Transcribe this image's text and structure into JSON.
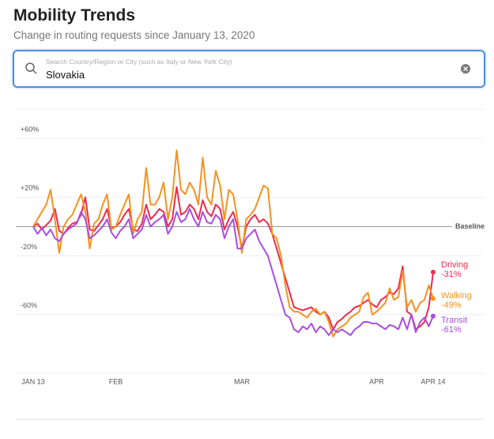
{
  "header": {
    "title": "Mobility Trends",
    "subtitle": "Change in routing requests since January 13, 2020"
  },
  "search": {
    "placeholder": "Search Country/Region or City (such as Italy or New York City)",
    "value": "Slovakia"
  },
  "chart_data": {
    "type": "line",
    "x": [
      0,
      1,
      2,
      3,
      4,
      5,
      6,
      7,
      8,
      9,
      10,
      11,
      12,
      13,
      14,
      15,
      16,
      17,
      18,
      19,
      20,
      21,
      22,
      23,
      24,
      25,
      26,
      27,
      28,
      29,
      30,
      31,
      32,
      33,
      34,
      35,
      36,
      37,
      38,
      39,
      40,
      41,
      42,
      43,
      44,
      45,
      46,
      47,
      48,
      49,
      50,
      51,
      52,
      53,
      54,
      55,
      56,
      57,
      58,
      59,
      60,
      61,
      62,
      63,
      64,
      65,
      66,
      67,
      68,
      69,
      70,
      71,
      72,
      73,
      74,
      75,
      76,
      77,
      78,
      79,
      80,
      81,
      82,
      83,
      84,
      85,
      86,
      87,
      88,
      89,
      90,
      91,
      92
    ],
    "xlim": [
      0,
      92
    ],
    "xticks": [
      {
        "value": 0,
        "label": "JAN 13"
      },
      {
        "value": 19,
        "label": "FEB"
      },
      {
        "value": 48,
        "label": "MAR"
      },
      {
        "value": 79,
        "label": "APR"
      },
      {
        "value": 92,
        "label": "APR 14"
      }
    ],
    "ylim": [
      -100,
      80
    ],
    "yticks": [
      {
        "value": 60,
        "label": "+60%"
      },
      {
        "value": 20,
        "label": "+20%"
      },
      {
        "value": -20,
        "label": "-20%"
      },
      {
        "value": -60,
        "label": "-60%"
      }
    ],
    "baseline": {
      "value": 0,
      "label": "Baseline"
    },
    "series": [
      {
        "name": "Driving",
        "color": "#ee2a50",
        "end_label": "-31%",
        "values": [
          0,
          2,
          -2,
          1,
          4,
          12,
          -3,
          -5,
          -1,
          2,
          3,
          8,
          20,
          -2,
          -3,
          1,
          5,
          12,
          -1,
          0,
          3,
          8,
          12,
          -2,
          -3,
          2,
          15,
          5,
          8,
          12,
          10,
          0,
          5,
          27,
          8,
          10,
          15,
          12,
          5,
          18,
          10,
          7,
          15,
          12,
          -2,
          5,
          10,
          0,
          -15,
          0,
          5,
          8,
          3,
          5,
          2,
          -5,
          -15,
          -25,
          -35,
          -45,
          -55,
          -56,
          -57,
          -56,
          -55,
          -58,
          -60,
          -58,
          -62,
          -70,
          -65,
          -63,
          -60,
          -58,
          -55,
          -54,
          -52,
          -50,
          -53,
          -55,
          -50,
          -48,
          -45,
          -46,
          -42,
          -27,
          -58,
          -60,
          -70,
          -68,
          -65,
          -55,
          -31
        ]
      },
      {
        "name": "Walking",
        "color": "#f5921e",
        "end_label": "-49%",
        "values": [
          0,
          5,
          10,
          15,
          25,
          5,
          -18,
          0,
          5,
          8,
          15,
          22,
          10,
          -15,
          2,
          5,
          15,
          22,
          -2,
          0,
          8,
          15,
          22,
          -5,
          5,
          10,
          40,
          15,
          15,
          20,
          30,
          5,
          20,
          52,
          25,
          22,
          30,
          25,
          15,
          47,
          20,
          15,
          38,
          28,
          5,
          25,
          22,
          5,
          -18,
          5,
          8,
          12,
          20,
          28,
          26,
          -5,
          -8,
          -20,
          -40,
          -55,
          -58,
          -58,
          -60,
          -62,
          -58,
          -56,
          -60,
          -58,
          -65,
          -75,
          -70,
          -68,
          -66,
          -62,
          -60,
          -58,
          -48,
          -45,
          -60,
          -58,
          -55,
          -52,
          -42,
          -50,
          -48,
          -30,
          -55,
          -50,
          -58,
          -52,
          -50,
          -40,
          -49
        ]
      },
      {
        "name": "Transit",
        "color": "#a94ee0",
        "end_label": "-61%",
        "values": [
          0,
          -5,
          -1,
          -6,
          -2,
          -8,
          -10,
          -5,
          -2,
          0,
          2,
          10,
          5,
          -8,
          -6,
          -3,
          0,
          5,
          -4,
          -8,
          -3,
          0,
          5,
          -8,
          -5,
          -2,
          8,
          0,
          3,
          5,
          8,
          -5,
          0,
          10,
          3,
          5,
          12,
          5,
          0,
          10,
          3,
          2,
          8,
          5,
          -8,
          0,
          5,
          -15,
          -15,
          -8,
          -5,
          -2,
          -10,
          -15,
          -20,
          -30,
          -40,
          -50,
          -60,
          -62,
          -70,
          -72,
          -68,
          -70,
          -66,
          -72,
          -68,
          -70,
          -74,
          -70,
          -72,
          -70,
          -72,
          -74,
          -70,
          -68,
          -65,
          -65,
          -66,
          -66,
          -68,
          -70,
          -67,
          -68,
          -70,
          -62,
          -70,
          -60,
          -72,
          -65,
          -62,
          -68,
          -61
        ]
      }
    ]
  }
}
